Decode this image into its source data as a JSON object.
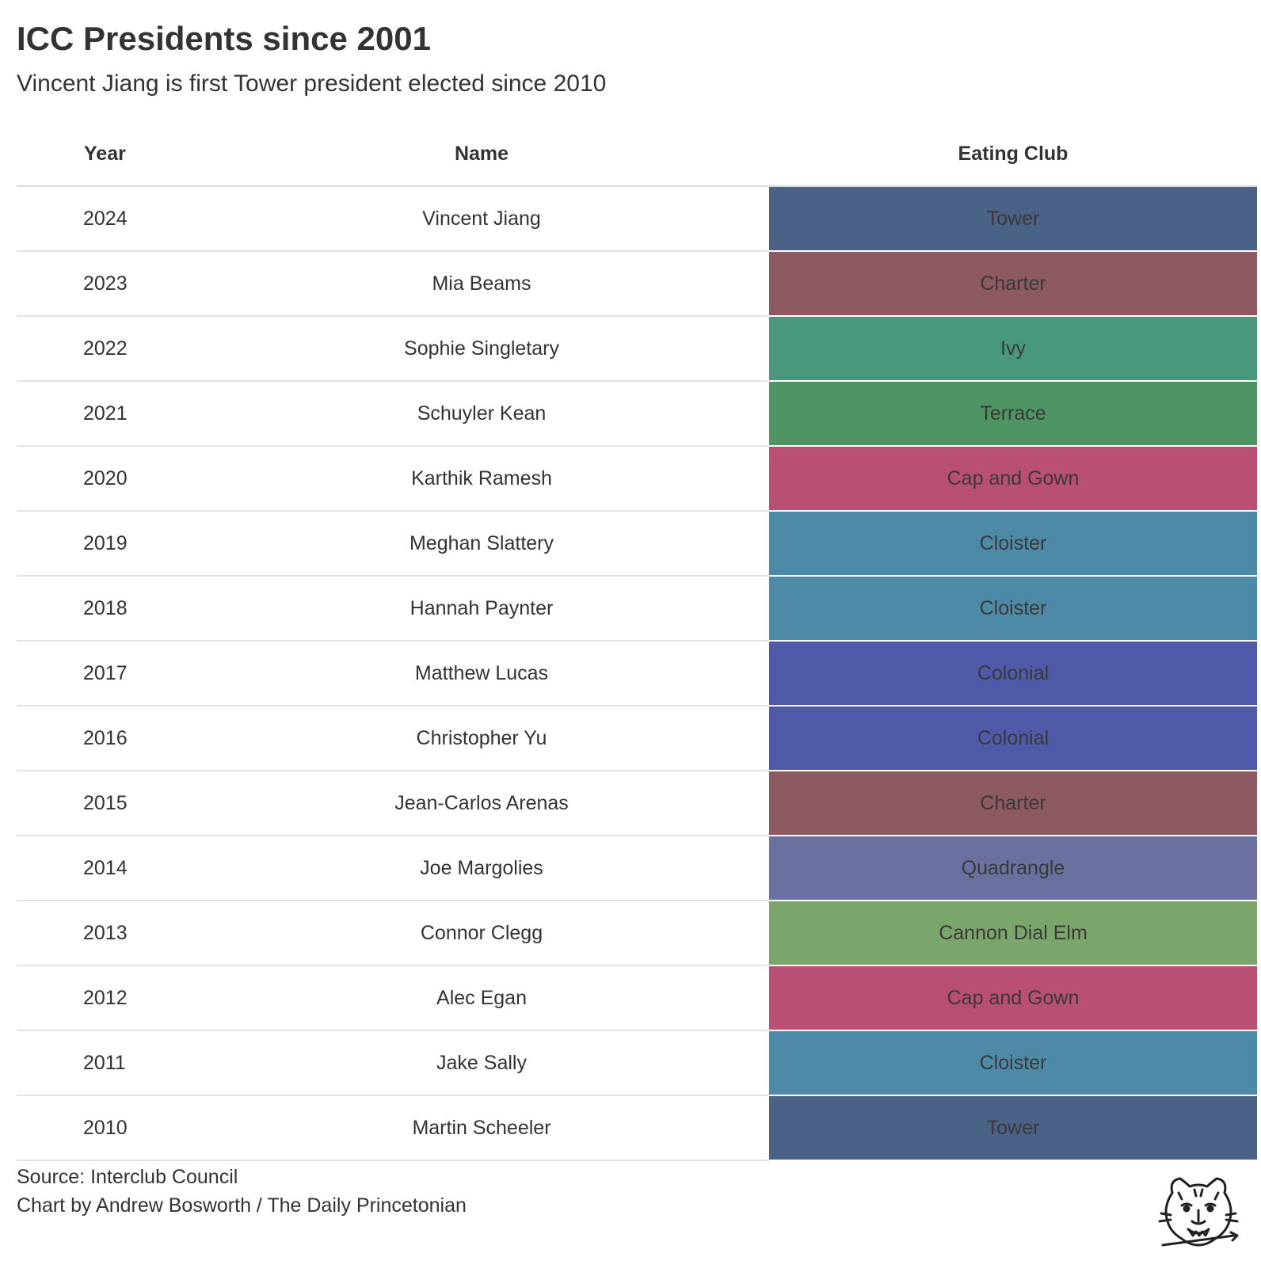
{
  "chart_data": {
    "type": "table",
    "title": "ICC Presidents since 2001",
    "subtitle": "Vincent Jiang is first Tower president elected since 2010",
    "columns": [
      "Year",
      "Name",
      "Eating Club"
    ],
    "rows": [
      {
        "year": "2024",
        "name": "Vincent Jiang",
        "club": "Tower",
        "color": "#4a6286"
      },
      {
        "year": "2023",
        "name": "Mia Beams",
        "club": "Charter",
        "color": "#8c5a60"
      },
      {
        "year": "2022",
        "name": "Sophie Singletary",
        "club": "Ivy",
        "color": "#4a987c"
      },
      {
        "year": "2021",
        "name": "Schuyler Kean",
        "club": "Terrace",
        "color": "#4f9563"
      },
      {
        "year": "2020",
        "name": "Karthik Ramesh",
        "club": "Cap and Gown",
        "color": "#b94f74"
      },
      {
        "year": "2019",
        "name": "Meghan Slattery",
        "club": "Cloister",
        "color": "#4d8aa8"
      },
      {
        "year": "2018",
        "name": "Hannah Paynter",
        "club": "Cloister",
        "color": "#4d8aa8"
      },
      {
        "year": "2017",
        "name": "Matthew Lucas",
        "club": "Colonial",
        "color": "#4f5ba9"
      },
      {
        "year": "2016",
        "name": "Christopher Yu",
        "club": "Colonial",
        "color": "#4f5ba9"
      },
      {
        "year": "2015",
        "name": "Jean-Carlos Arenas",
        "club": "Charter",
        "color": "#8c5a60"
      },
      {
        "year": "2014",
        "name": "Joe Margolies",
        "club": "Quadrangle",
        "color": "#6a709f"
      },
      {
        "year": "2013",
        "name": "Connor Clegg",
        "club": "Cannon Dial Elm",
        "color": "#7aa56b"
      },
      {
        "year": "2012",
        "name": "Alec Egan",
        "club": "Cap and Gown",
        "color": "#b94f74"
      },
      {
        "year": "2011",
        "name": "Jake Sally",
        "club": "Cloister",
        "color": "#4d8aa8"
      },
      {
        "year": "2010",
        "name": "Martin Scheeler",
        "club": "Tower",
        "color": "#4a6286"
      }
    ]
  },
  "footer": {
    "source": "Source: Interclub Council",
    "credit": "Chart by Andrew Bosworth / The Daily Princetonian"
  },
  "logo": {
    "icon": "tiger-head-logo-icon"
  }
}
